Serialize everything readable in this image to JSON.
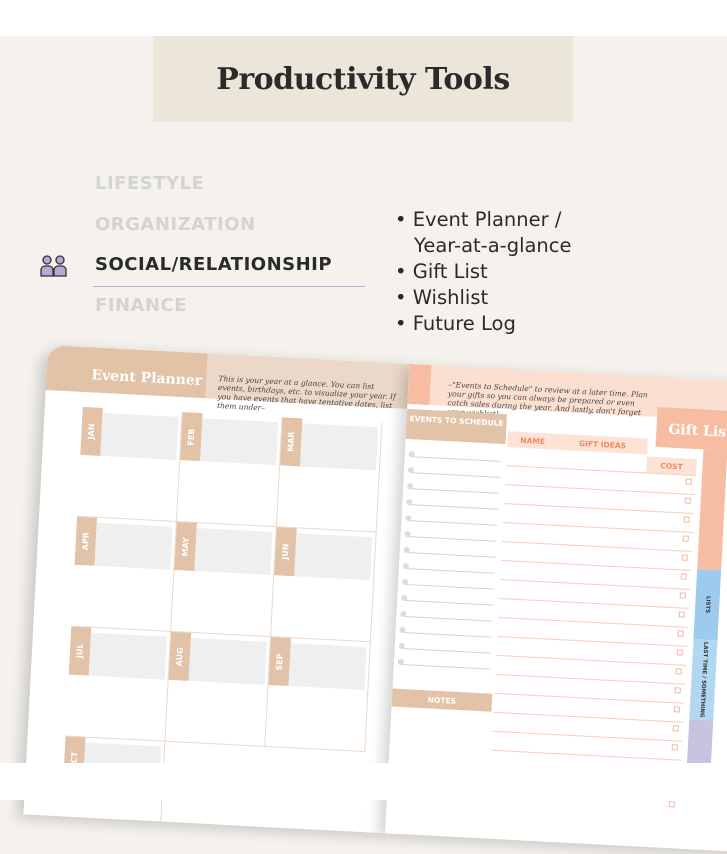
{
  "banner": {
    "title": "Productivity Tools"
  },
  "menu": {
    "items": [
      {
        "label": "LIFESTYLE",
        "active": false
      },
      {
        "label": "ORGANIZATION",
        "active": false
      },
      {
        "label": "SOCIAL/RELATIONSHIP",
        "active": true,
        "icon": "people-icon"
      },
      {
        "label": "FINANCE",
        "active": false
      }
    ]
  },
  "features": [
    "Event Planner /",
    "Year-at-a-glance",
    "Gift List",
    "Wishlist",
    "Future Log"
  ],
  "planner": {
    "left": {
      "title": "Event Planner",
      "description": "This is your year at a glance. You can list events, birthdays, etc. to visualize your year. If you have events that have tentative dates, list them under–",
      "months": [
        "JAN",
        "FEB",
        "MAR",
        "APR",
        "MAY",
        "JUN",
        "JUL",
        "AUG",
        "SEP",
        "OCT"
      ]
    },
    "right": {
      "description": "–\"Events to Schedule\" to review at a later time. Plan your gifts so you can always be prepared or even catch sales during the year. And lastly, don't forget your wishlist!",
      "title": "Gift List",
      "events_header": "EVENTS TO SCHEDULE",
      "columns": [
        "NAME",
        "GIFT IDEAS",
        "COST"
      ],
      "notes": "NOTES",
      "side_tabs": [
        "LISTS",
        "LAST TIME / SOMETHING"
      ]
    },
    "colors": {
      "tan": "#e2c3a8",
      "peach": "#f7bda3",
      "blue": "#9ccbee",
      "lightblue": "#b2d7f2",
      "lavender": "#c9c3e0",
      "accent_text": "#ef8a63"
    }
  }
}
